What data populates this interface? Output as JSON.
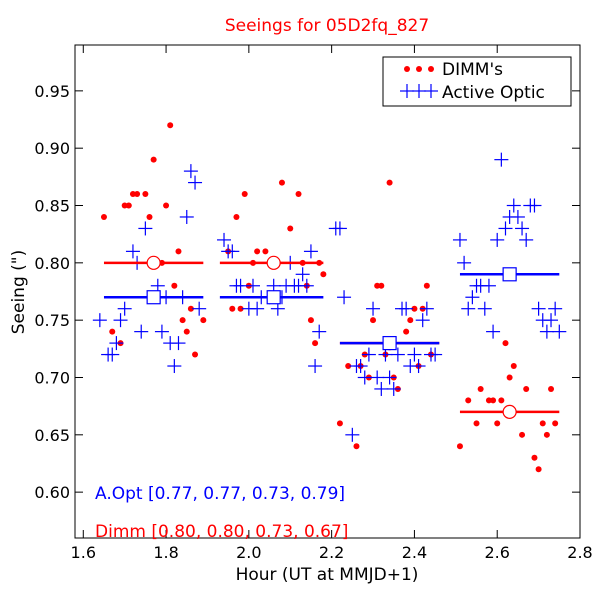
{
  "chart_data": {
    "type": "scatter",
    "title": "Seeings for 05D2fq_827",
    "xlabel": "Hour (UT at MMJD+1)",
    "ylabel": "Seeing (\")",
    "xlim": [
      1.58,
      2.8
    ],
    "ylim": [
      0.56,
      0.99
    ],
    "xticks": [
      "1.6",
      "1.8",
      "2.0",
      "2.2",
      "2.4",
      "2.6",
      "2.8"
    ],
    "yticks": [
      "0.60",
      "0.65",
      "0.70",
      "0.75",
      "0.80",
      "0.85",
      "0.90",
      "0.95"
    ],
    "grid": false,
    "legend_position": "top-right",
    "colors": {
      "dimm": "#ff0000",
      "aopt": "#0000ff",
      "axis": "#000000"
    },
    "legend": [
      {
        "label": "DIMM's",
        "marker": "dot",
        "color": "#ff0000"
      },
      {
        "label": "Active Optic",
        "marker": "plus",
        "color": "#0000ff"
      }
    ],
    "series": [
      {
        "name": "DIMM's",
        "marker": "dot",
        "color": "#ff0000",
        "x": [
          1.65,
          1.67,
          1.69,
          1.7,
          1.71,
          1.72,
          1.73,
          1.75,
          1.76,
          1.77,
          1.79,
          1.8,
          1.81,
          1.82,
          1.83,
          1.84,
          1.85,
          1.86,
          1.87,
          1.89,
          1.95,
          1.96,
          1.97,
          1.98,
          1.99,
          2.0,
          2.01,
          2.02,
          2.04,
          2.06,
          2.08,
          2.1,
          2.12,
          2.13,
          2.14,
          2.15,
          2.16,
          2.17,
          2.18,
          2.22,
          2.24,
          2.26,
          2.27,
          2.28,
          2.29,
          2.3,
          2.31,
          2.32,
          2.33,
          2.34,
          2.35,
          2.36,
          2.38,
          2.39,
          2.4,
          2.41,
          2.42,
          2.43,
          2.44,
          2.51,
          2.53,
          2.55,
          2.56,
          2.58,
          2.59,
          2.6,
          2.61,
          2.62,
          2.63,
          2.64,
          2.66,
          2.67,
          2.69,
          2.7,
          2.71,
          2.72,
          2.73,
          2.74
        ],
        "y": [
          0.84,
          0.74,
          0.73,
          0.85,
          0.85,
          0.86,
          0.86,
          0.86,
          0.84,
          0.89,
          0.8,
          0.85,
          0.92,
          0.78,
          0.81,
          0.75,
          0.74,
          0.76,
          0.72,
          0.75,
          0.81,
          0.76,
          0.84,
          0.76,
          0.86,
          0.78,
          0.8,
          0.81,
          0.81,
          0.8,
          0.87,
          0.83,
          0.86,
          0.8,
          0.78,
          0.75,
          0.73,
          0.8,
          0.79,
          0.66,
          0.71,
          0.64,
          0.71,
          0.72,
          0.7,
          0.75,
          0.78,
          0.78,
          0.72,
          0.87,
          0.7,
          0.69,
          0.74,
          0.75,
          0.76,
          0.71,
          0.76,
          0.78,
          0.72,
          0.64,
          0.68,
          0.66,
          0.69,
          0.68,
          0.68,
          0.66,
          0.68,
          0.73,
          0.7,
          0.71,
          0.65,
          0.69,
          0.63,
          0.62,
          0.66,
          0.65,
          0.69,
          0.66
        ]
      },
      {
        "name": "Active Optic",
        "marker": "plus",
        "color": "#0000ff",
        "x": [
          1.64,
          1.66,
          1.67,
          1.68,
          1.69,
          1.7,
          1.72,
          1.73,
          1.74,
          1.75,
          1.78,
          1.79,
          1.8,
          1.81,
          1.82,
          1.83,
          1.84,
          1.85,
          1.86,
          1.87,
          1.88,
          1.94,
          1.95,
          1.96,
          1.97,
          1.98,
          2.0,
          2.01,
          2.02,
          2.03,
          2.05,
          2.06,
          2.07,
          2.08,
          2.09,
          2.1,
          2.11,
          2.12,
          2.13,
          2.14,
          2.15,
          2.16,
          2.17,
          2.21,
          2.22,
          2.23,
          2.25,
          2.26,
          2.27,
          2.28,
          2.29,
          2.3,
          2.31,
          2.32,
          2.33,
          2.34,
          2.35,
          2.36,
          2.37,
          2.38,
          2.39,
          2.4,
          2.41,
          2.42,
          2.43,
          2.44,
          2.45,
          2.51,
          2.52,
          2.53,
          2.54,
          2.55,
          2.56,
          2.57,
          2.58,
          2.59,
          2.6,
          2.61,
          2.62,
          2.63,
          2.64,
          2.65,
          2.66,
          2.67,
          2.68,
          2.69,
          2.7,
          2.71,
          2.72,
          2.73,
          2.74,
          2.75
        ],
        "y": [
          0.75,
          0.72,
          0.72,
          0.73,
          0.75,
          0.76,
          0.81,
          0.8,
          0.74,
          0.83,
          0.78,
          0.74,
          0.77,
          0.73,
          0.71,
          0.73,
          0.77,
          0.84,
          0.88,
          0.87,
          0.76,
          0.82,
          0.81,
          0.81,
          0.78,
          0.78,
          0.76,
          0.78,
          0.76,
          0.77,
          0.77,
          0.78,
          0.76,
          0.77,
          0.78,
          0.8,
          0.78,
          0.78,
          0.79,
          0.78,
          0.81,
          0.71,
          0.74,
          0.83,
          0.83,
          0.77,
          0.65,
          0.71,
          0.71,
          0.7,
          0.72,
          0.76,
          0.7,
          0.69,
          0.72,
          0.7,
          0.69,
          0.72,
          0.76,
          0.76,
          0.71,
          0.72,
          0.71,
          0.75,
          0.76,
          0.72,
          0.72,
          0.82,
          0.8,
          0.76,
          0.77,
          0.78,
          0.78,
          0.76,
          0.78,
          0.74,
          0.82,
          0.89,
          0.83,
          0.84,
          0.85,
          0.84,
          0.83,
          0.82,
          0.85,
          0.85,
          0.76,
          0.75,
          0.74,
          0.75,
          0.76,
          0.74
        ]
      }
    ],
    "medians": [
      {
        "name": "Dimm",
        "color": "#ff0000",
        "marker": "circle",
        "segments": [
          {
            "x0": 1.65,
            "x1": 1.89,
            "xc": 1.77,
            "y": 0.8
          },
          {
            "x0": 1.93,
            "x1": 2.18,
            "xc": 2.06,
            "y": 0.8
          },
          {
            "x0": 2.22,
            "x1": 2.46,
            "xc": 2.34,
            "y": 0.73
          },
          {
            "x0": 2.51,
            "x1": 2.75,
            "xc": 2.63,
            "y": 0.67
          }
        ]
      },
      {
        "name": "A.Opt",
        "color": "#0000ff",
        "marker": "square",
        "segments": [
          {
            "x0": 1.65,
            "x1": 1.89,
            "xc": 1.77,
            "y": 0.77
          },
          {
            "x0": 1.93,
            "x1": 2.18,
            "xc": 2.06,
            "y": 0.77
          },
          {
            "x0": 2.22,
            "x1": 2.46,
            "xc": 2.34,
            "y": 0.73
          },
          {
            "x0": 2.51,
            "x1": 2.75,
            "xc": 2.63,
            "y": 0.79
          }
        ]
      }
    ],
    "annotations": [
      {
        "text": "A.Opt [0.77, 0.77, 0.73, 0.79]",
        "color": "#0000ff"
      },
      {
        "text": "Dimm [0.80, 0.80, 0.73, 0.67]",
        "color": "#ff0000"
      }
    ]
  }
}
